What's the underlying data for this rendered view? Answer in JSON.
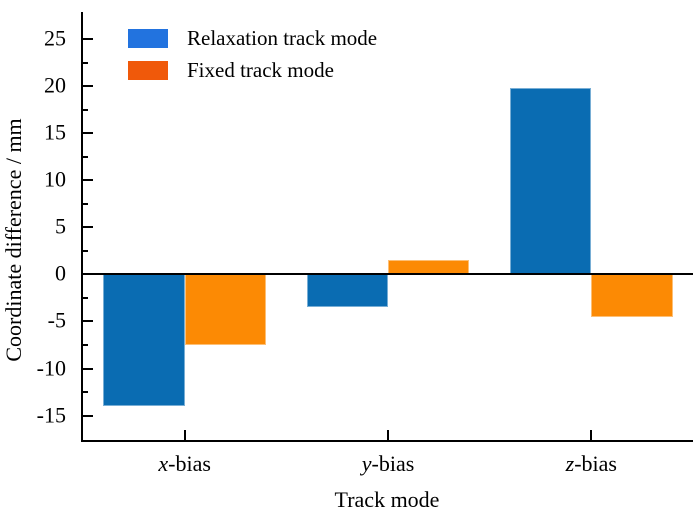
{
  "chart_data": {
    "type": "bar",
    "title": "",
    "categories": [
      "x-bias",
      "y-bias",
      "z-bias"
    ],
    "series": [
      {
        "name": "Relaxation track mode",
        "color": "#0a6cb2",
        "values": [
          -14,
          -3.5,
          19.8
        ]
      },
      {
        "name": "Fixed track mode",
        "color": "#fc8a04",
        "values": [
          -7.5,
          1.5,
          -4.5
        ]
      }
    ],
    "xlabel": "Track mode",
    "ylabel": "Coordinate difference / mm",
    "ylim": [
      -17.6,
      27.9
    ],
    "yticks": [
      25,
      20,
      15,
      10,
      5,
      0,
      -5,
      -10,
      -15
    ],
    "minor_yticks": [
      22.5,
      17.5,
      12.5,
      7.5,
      2.5,
      -2.5,
      -7.5,
      -12.5
    ],
    "grid": false,
    "zero_line": true,
    "legend_position": "top-left",
    "bar_group_width_fraction": 0.8
  },
  "legend": {
    "items": [
      {
        "label": "Relaxation track mode",
        "swatch_color": "#2273df"
      },
      {
        "label": "Fixed track mode",
        "swatch_color": "#f0590a"
      }
    ]
  },
  "colors": {
    "axis": "#000000",
    "text": "#000000",
    "background": "#ffffff"
  }
}
